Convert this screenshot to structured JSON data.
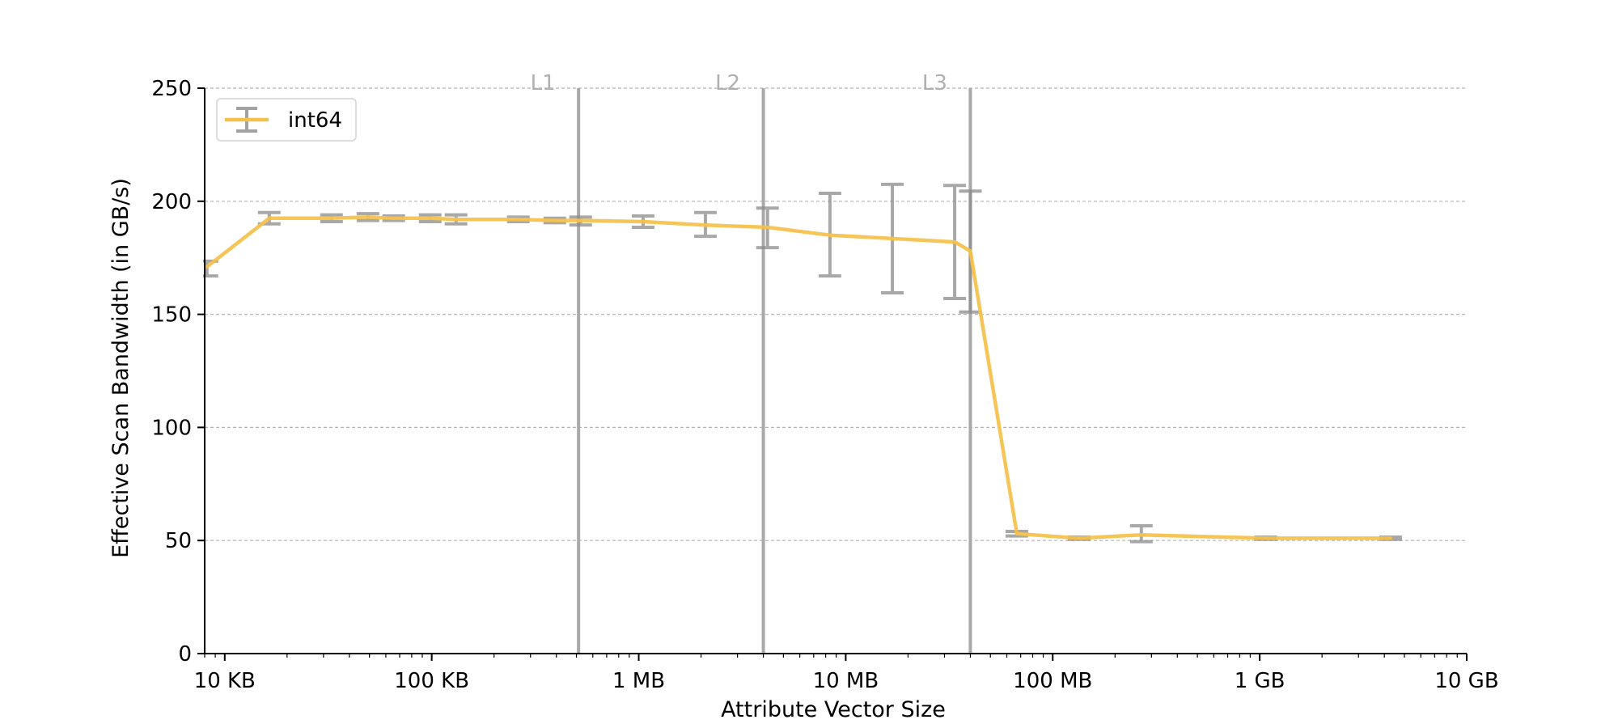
{
  "chart_data": {
    "type": "line",
    "xlabel": "Attribute Vector Size",
    "ylabel": "Effective Scan Bandwidth (in GB/s)",
    "x_scale": "log",
    "x_unit": "bytes",
    "xlim": [
      8000,
      10000000000
    ],
    "ylim": [
      0,
      250
    ],
    "x_ticks": [
      {
        "value": 10000,
        "label": "10 KB"
      },
      {
        "value": 100000,
        "label": "100 KB"
      },
      {
        "value": 1000000,
        "label": "1 MB"
      },
      {
        "value": 10000000,
        "label": "10 MB"
      },
      {
        "value": 100000000,
        "label": "100 MB"
      },
      {
        "value": 1000000000,
        "label": "1 GB"
      },
      {
        "value": 10000000000,
        "label": "10 GB"
      }
    ],
    "y_ticks": [
      {
        "value": 0,
        "label": "0"
      },
      {
        "value": 50,
        "label": "50"
      },
      {
        "value": 100,
        "label": "100"
      },
      {
        "value": 150,
        "label": "150"
      },
      {
        "value": 200,
        "label": "200"
      },
      {
        "value": 250,
        "label": "250"
      }
    ],
    "grid": "horizontal-dashed",
    "legend_position": "top-left",
    "reference_lines": [
      {
        "label": "L1",
        "x": 512000
      },
      {
        "label": "L2",
        "x": 4000000
      },
      {
        "label": "L3",
        "x": 40000000
      }
    ],
    "series": [
      {
        "name": "int64",
        "color": "#f5c04a",
        "error_color": "#8c8c8c",
        "x": [
          8200,
          16400,
          32800,
          49200,
          65500,
          98300,
          131000,
          262000,
          393000,
          524000,
          1050000,
          2100000,
          4190000,
          8390000,
          16800000,
          33600000,
          40000000,
          67100000,
          134000000,
          268000000,
          1070000000,
          4290000000
        ],
        "y": [
          171,
          192.5,
          192.5,
          193,
          192.5,
          192.5,
          192,
          192,
          191.5,
          191.5,
          191,
          189.5,
          188.5,
          185,
          183.5,
          182,
          178,
          53,
          51,
          52.5,
          51,
          51
        ],
        "err_low": [
          167,
          190,
          191,
          191.5,
          191.5,
          191,
          190,
          191,
          190.5,
          189.5,
          188.5,
          184.5,
          179.5,
          167,
          159.5,
          157,
          151,
          52,
          50.5,
          49.5,
          50.5,
          50.5
        ],
        "err_high": [
          173.5,
          195,
          194,
          194.5,
          193.5,
          194,
          194,
          193,
          192.5,
          193,
          193.5,
          195,
          197,
          203.5,
          207.5,
          207,
          204.5,
          54,
          51.5,
          56.5,
          51.5,
          51.5
        ]
      }
    ]
  }
}
